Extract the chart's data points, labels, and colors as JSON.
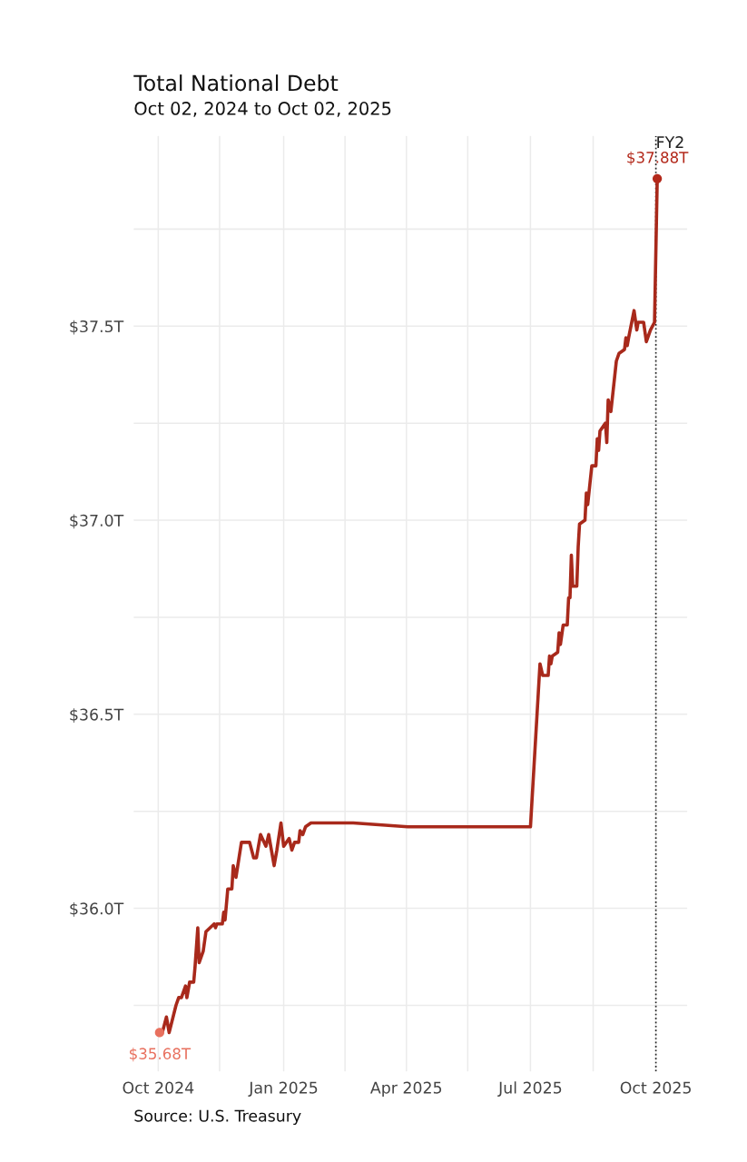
{
  "chart_data": {
    "type": "line",
    "title": "Total National Debt",
    "subtitle": "Oct 02, 2024 to Oct 02, 2025",
    "annotations": [
      "Source: U.S. Treasury"
    ],
    "xlim": [
      "2024-09-13",
      "2025-10-24"
    ],
    "xticks": [
      {
        "value": "2024-10-01",
        "label": "Oct 2024"
      },
      {
        "value": "2024-11-15",
        "label": null
      },
      {
        "value": "2025-01-01",
        "label": "Jan 2025"
      },
      {
        "value": "2025-02-15",
        "label": null
      },
      {
        "value": "2025-04-01",
        "label": "Apr 2025"
      },
      {
        "value": "2025-05-16",
        "label": null
      },
      {
        "value": "2025-07-01",
        "label": "Jul 2025"
      },
      {
        "value": "2025-08-16",
        "label": null
      },
      {
        "value": "2025-10-01",
        "label": "Oct 2025"
      }
    ],
    "ylim": [
      35.58,
      37.99
    ],
    "yticks": [
      {
        "value": 35.75,
        "label": null
      },
      {
        "value": 36.0,
        "label": "$36.0T"
      },
      {
        "value": 36.25,
        "label": null
      },
      {
        "value": 36.5,
        "label": "$36.5T"
      },
      {
        "value": 36.75,
        "label": null
      },
      {
        "value": 37.0,
        "label": "$37.0T"
      },
      {
        "value": 37.25,
        "label": null
      },
      {
        "value": 37.5,
        "label": "$37.5T"
      },
      {
        "value": 37.75,
        "label": null
      }
    ],
    "grid": true,
    "ref_lines": [
      {
        "axis": "x",
        "value": "2025-10-01",
        "label": "FY2",
        "color": "#222222",
        "line_style": "dotted"
      }
    ],
    "series": [
      {
        "color": "#a8291b",
        "x": [
          "2024-10-02",
          "2024-10-04",
          "2024-10-07",
          "2024-10-09",
          "2024-10-14",
          "2024-10-16",
          "2024-10-18",
          "2024-10-21",
          "2024-10-22",
          "2024-10-24",
          "2024-10-27",
          "2024-10-28",
          "2024-10-30",
          "2024-10-31",
          "2024-11-03",
          "2024-11-05",
          "2024-11-11",
          "2024-11-12",
          "2024-11-13",
          "2024-11-17",
          "2024-11-18",
          "2024-11-19",
          "2024-11-21",
          "2024-11-24",
          "2024-11-25",
          "2024-11-27",
          "2024-12-01",
          "2024-12-07",
          "2024-12-10",
          "2024-12-12",
          "2024-12-15",
          "2024-12-19",
          "2024-12-21",
          "2024-12-25",
          "2024-12-27",
          "2024-12-30",
          "2025-01-01",
          "2025-01-05",
          "2025-01-07",
          "2025-01-09",
          "2025-01-12",
          "2025-01-13",
          "2025-01-15",
          "2025-01-17",
          "2025-01-21",
          "2025-02-21",
          "2025-04-02",
          "2025-05-06",
          "2025-07-01",
          "2025-07-08",
          "2025-07-10",
          "2025-07-14",
          "2025-07-15",
          "2025-07-16",
          "2025-07-17",
          "2025-07-21",
          "2025-07-22",
          "2025-07-23",
          "2025-07-25",
          "2025-07-28",
          "2025-07-29",
          "2025-07-30",
          "2025-07-31",
          "2025-08-01",
          "2025-08-04",
          "2025-08-05",
          "2025-08-06",
          "2025-08-10",
          "2025-08-11",
          "2025-08-12",
          "2025-08-15",
          "2025-08-18",
          "2025-08-19",
          "2025-08-20",
          "2025-08-21",
          "2025-08-25",
          "2025-08-26",
          "2025-08-27",
          "2025-08-29",
          "2025-09-02",
          "2025-09-04",
          "2025-09-08",
          "2025-09-09",
          "2025-09-10",
          "2025-09-11",
          "2025-09-15",
          "2025-09-17",
          "2025-09-18",
          "2025-09-22",
          "2025-09-24",
          "2025-09-27",
          "2025-09-30",
          "2025-10-02"
        ],
        "values": [
          35.68,
          35.68,
          35.72,
          35.68,
          35.75,
          35.77,
          35.77,
          35.8,
          35.77,
          35.81,
          35.81,
          35.85,
          35.95,
          35.86,
          35.89,
          35.94,
          35.96,
          35.95,
          35.96,
          35.96,
          35.99,
          35.97,
          36.05,
          36.05,
          36.11,
          36.08,
          36.17,
          36.17,
          36.13,
          36.13,
          36.19,
          36.16,
          36.19,
          36.11,
          36.15,
          36.22,
          36.16,
          36.18,
          36.15,
          36.17,
          36.17,
          36.2,
          36.19,
          36.21,
          36.22,
          36.22,
          36.21,
          36.21,
          36.21,
          36.63,
          36.6,
          36.6,
          36.65,
          36.63,
          36.65,
          36.66,
          36.71,
          36.68,
          36.73,
          36.73,
          36.8,
          36.8,
          36.91,
          36.83,
          36.83,
          36.93,
          36.99,
          37.0,
          37.07,
          37.04,
          37.14,
          37.14,
          37.21,
          37.18,
          37.23,
          37.25,
          37.2,
          37.31,
          37.28,
          37.41,
          37.43,
          37.44,
          37.47,
          37.45,
          37.47,
          37.54,
          37.49,
          37.51,
          37.51,
          37.46,
          37.49,
          37.51,
          37.88
        ]
      },
      {
        "type": "scatter",
        "marker": "circle",
        "x": [
          "2024-10-02",
          "2025-10-02"
        ],
        "values": [
          35.68,
          37.88
        ],
        "colors": [
          "#e8705e",
          "#b3291b"
        ],
        "value_labels": [
          "$35.68T",
          "$37.88T"
        ]
      }
    ]
  }
}
